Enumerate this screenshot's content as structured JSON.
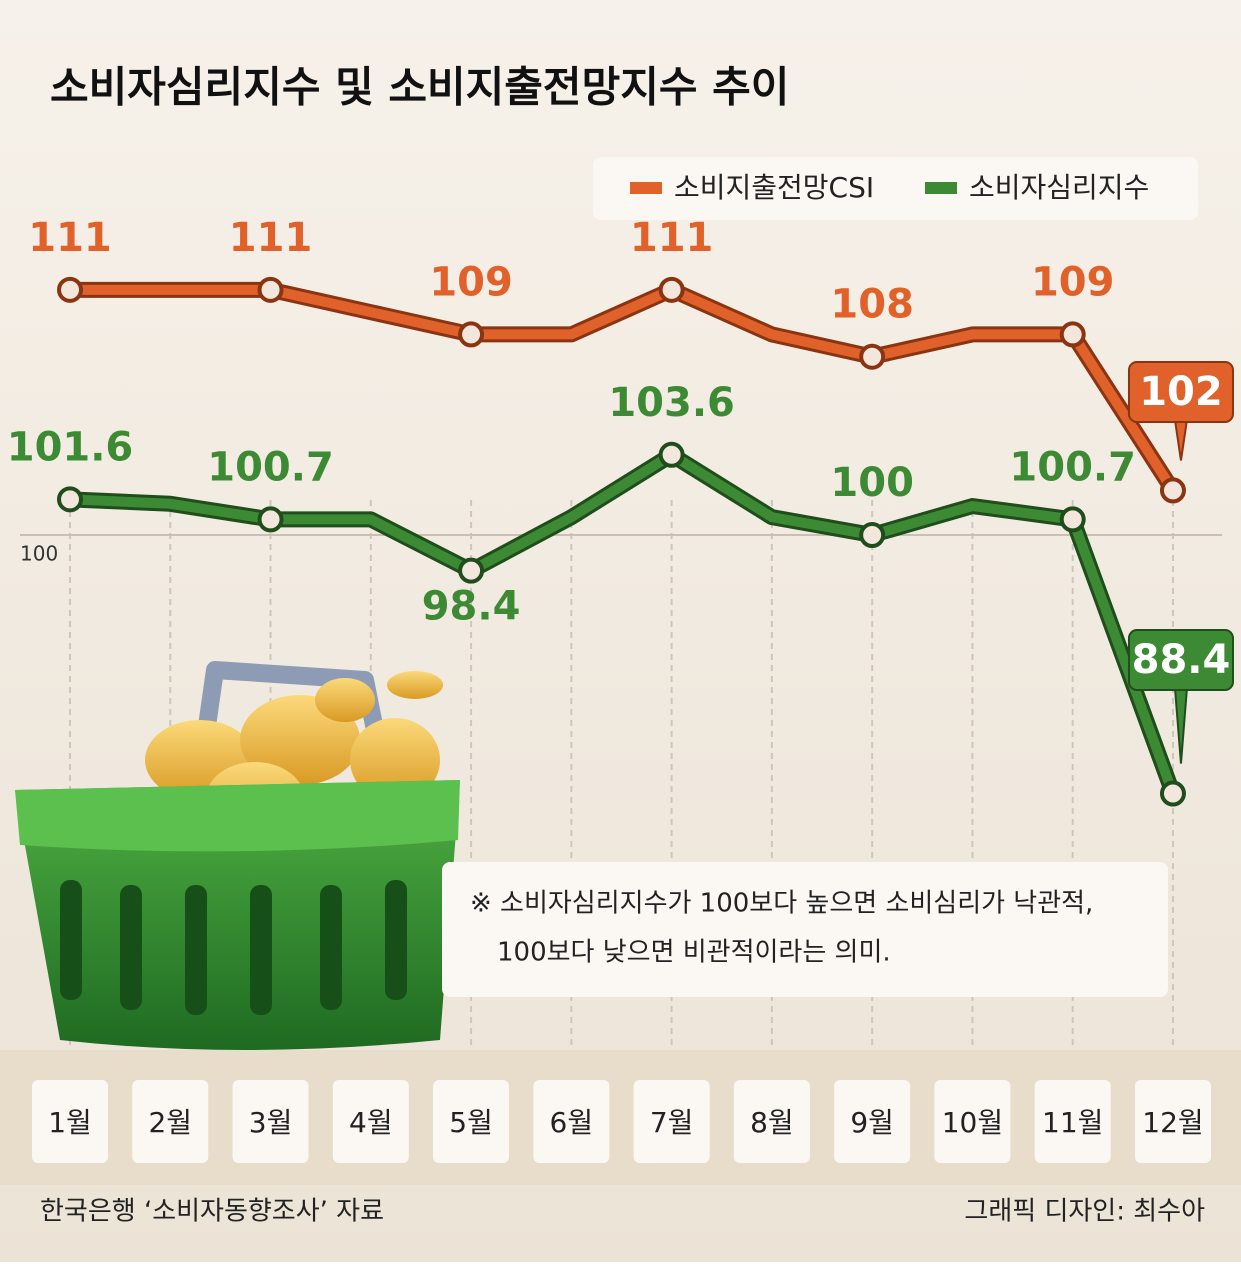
{
  "chart_data": {
    "type": "line",
    "title": "소비자심리지수 및 소비지출전망지수 추이",
    "categories": [
      "1월",
      "2월",
      "3월",
      "4월",
      "5월",
      "6월",
      "7월",
      "8월",
      "9월",
      "10월",
      "11월",
      "12월"
    ],
    "series": [
      {
        "name": "소비지출전망CSI",
        "color": "#e0622a",
        "values": [
          111,
          111,
          111,
          110,
          109,
          109,
          111,
          109,
          108,
          109,
          109,
          102
        ],
        "value_labels": [
          "111",
          null,
          "111",
          null,
          "109",
          null,
          "111",
          null,
          "108",
          null,
          "109",
          "102"
        ]
      },
      {
        "name": "소비자심리지수",
        "color": "#3d8a35",
        "values": [
          101.6,
          101.4,
          100.7,
          100.7,
          98.4,
          100.8,
          103.6,
          100.8,
          100,
          101.3,
          100.7,
          88.4
        ],
        "value_labels": [
          "101.6",
          null,
          "100.7",
          null,
          "98.4",
          null,
          "103.6",
          null,
          "100",
          null,
          "100.7",
          "88.4"
        ]
      }
    ],
    "ylim": [
      86,
      114
    ],
    "yticks": [
      100
    ],
    "note": [
      "※ 소비자심리지수가 100보다 높으면 소비심리가 낙관적,",
      "100보다 낮으면 비관적이라는 의미."
    ],
    "source": "한국은행 ‘소비자동향조사’ 자료",
    "credit": "그래픽 디자인: 최수아"
  }
}
